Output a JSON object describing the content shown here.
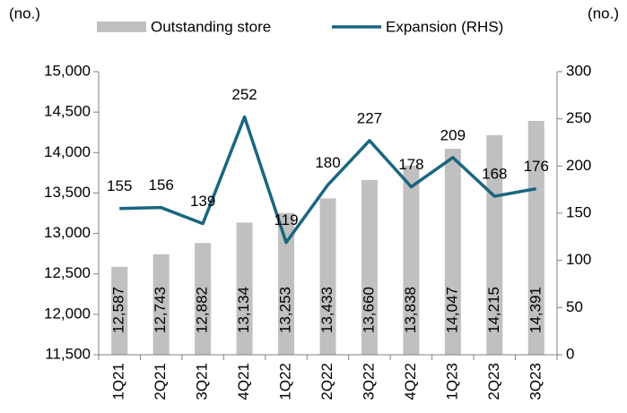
{
  "chart_data": {
    "type": "combo",
    "y_label": "(no.)",
    "y2_label": "(no.)",
    "categories": [
      "1Q21",
      "2Q21",
      "3Q21",
      "4Q21",
      "1Q22",
      "2Q22",
      "3Q22",
      "4Q22",
      "1Q23",
      "2Q23",
      "3Q23"
    ],
    "series": [
      {
        "name": "Outstanding store",
        "type": "bar",
        "color": "#c0c0c0",
        "values": [
          12587,
          12743,
          12882,
          13134,
          13253,
          13433,
          13660,
          13838,
          14047,
          14215,
          14391
        ],
        "value_labels": [
          "12,587",
          "12,743",
          "12,882",
          "13,134",
          "13,253",
          "13,433",
          "13,660",
          "13,838",
          "14,047",
          "14,215",
          "14,391"
        ]
      },
      {
        "name": "Expansion (RHS)",
        "type": "line",
        "axis": "y2",
        "color": "#1a6680",
        "values": [
          155,
          156,
          139,
          252,
          119,
          180,
          227,
          178,
          209,
          168,
          176
        ]
      }
    ],
    "ylim": [
      11500,
      15000
    ],
    "yticks": [
      {
        "value": 11500,
        "label": "11,500"
      },
      {
        "value": 12000,
        "label": "12,000"
      },
      {
        "value": 12500,
        "label": "12,500"
      },
      {
        "value": 13000,
        "label": "13,000"
      },
      {
        "value": 13500,
        "label": "13,500"
      },
      {
        "value": 14000,
        "label": "14,000"
      },
      {
        "value": 14500,
        "label": "14,500"
      },
      {
        "value": 15000,
        "label": "15,000"
      }
    ],
    "y2lim": [
      0,
      300
    ],
    "y2ticks": [
      0,
      50,
      100,
      150,
      200,
      250,
      300
    ]
  }
}
